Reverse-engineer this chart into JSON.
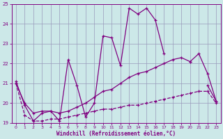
{
  "title": "",
  "xlabel": "Windchill (Refroidissement éolien,°C)",
  "background_color": "#cce8e8",
  "line_color": "#800080",
  "grid_color": "#9999bb",
  "xlim": [
    -0.5,
    23.5
  ],
  "ylim": [
    19.0,
    25.0
  ],
  "yticks": [
    19,
    20,
    21,
    22,
    23,
    24,
    25
  ],
  "xticks": [
    0,
    1,
    2,
    3,
    4,
    5,
    6,
    7,
    8,
    9,
    10,
    11,
    12,
    13,
    14,
    15,
    16,
    17,
    18,
    19,
    20,
    21,
    22,
    23
  ],
  "series1_y": [
    21.1,
    19.9,
    19.1,
    19.5,
    19.6,
    19.1,
    22.2,
    20.9,
    19.3,
    20.0,
    23.4,
    23.3,
    21.9,
    24.8,
    24.5,
    24.8,
    24.2,
    22.5,
    null,
    null,
    22.1,
    null,
    20.9,
    20.1
  ],
  "series2_y": [
    21.0,
    20.0,
    19.5,
    19.6,
    19.6,
    19.5,
    19.6,
    19.8,
    20.0,
    20.3,
    20.6,
    20.7,
    21.0,
    21.3,
    21.5,
    21.6,
    21.8,
    22.0,
    22.2,
    22.3,
    22.1,
    22.5,
    21.5,
    20.1
  ],
  "series3_y": [
    21.0,
    19.4,
    19.1,
    19.1,
    19.2,
    19.2,
    19.3,
    19.4,
    19.5,
    19.6,
    19.7,
    19.7,
    19.8,
    19.9,
    19.9,
    20.0,
    20.1,
    20.2,
    20.3,
    20.4,
    20.5,
    20.6,
    20.6,
    20.0
  ]
}
